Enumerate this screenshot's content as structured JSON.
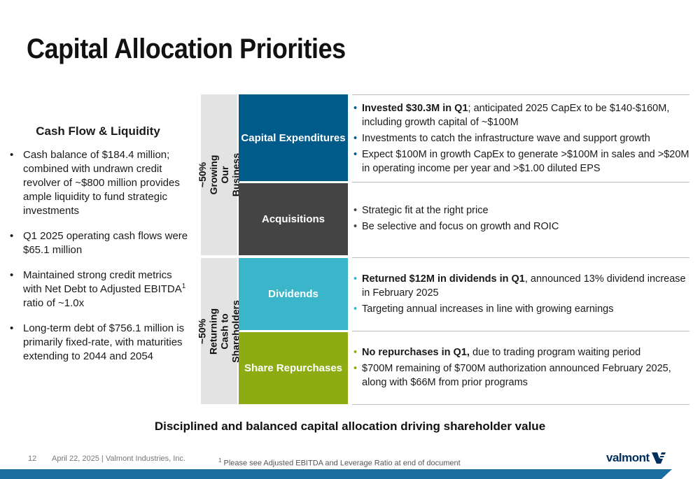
{
  "title": "Capital Allocation Priorities",
  "left": {
    "heading": "Cash Flow & Liquidity",
    "bullets": [
      "Cash balance of $184.4 million; combined with undrawn credit revolver of ~$800 million provides ample liquidity to fund strategic investments",
      "Q1 2025 operating cash flows were $65.1 million",
      "Maintained strong credit metrics with Net Debt to Adjusted EBITDA",
      "ratio of ~1.0x",
      "Long-term debt of $756.1 million is primarily fixed-rate, with maturities extending to 2044 and 2054"
    ],
    "footnote_marker": "1"
  },
  "groups": {
    "growing": "~50% Growing Our Business",
    "returning": "~50% Returning Cash to Shareholders"
  },
  "categories": {
    "capex": "Capital Expenditures",
    "acquisitions": "Acquisitions",
    "dividends": "Dividends",
    "repurchases": "Share Repurchases"
  },
  "capex": {
    "b1_bold": "Invested $30.3M in Q1",
    "b1_rest": "; anticipated 2025 CapEx to be $140-$160M, including growth capital of ~$100M",
    "b2": "Investments to catch the infrastructure wave and support growth",
    "b3": "Expect $100M in growth CapEx to generate >$100M in sales and >$20M in operating income per year and >$1.00 diluted EPS"
  },
  "acquisitions": {
    "b1": "Strategic fit at the right price",
    "b2": "Be selective and focus on growth and ROIC"
  },
  "dividends": {
    "b1_bold": "Returned $12M in dividends in Q1",
    "b1_rest": ", announced 13% dividend increase in February 2025",
    "b2": "Targeting annual increases in line with growing earnings"
  },
  "repurchases": {
    "b1_bold": "No repurchases in Q1,",
    "b1_rest": " due to trading program waiting period",
    "b2": "$700M remaining of $700M authorization announced February 2025, along with $66M from prior programs"
  },
  "tagline": "Disciplined and balanced capital allocation driving shareholder value",
  "footer": {
    "page": "12",
    "text": "April 22, 2025  | Valmont Industries, Inc.",
    "footnote_marker": "1",
    "footnote": " Please see Adjusted EBITDA and Leverage Ratio at end of document",
    "logo": "valmont"
  },
  "colors": {
    "capex": "#005a8a",
    "acquisitions": "#444444",
    "dividends": "#3bb5c9",
    "repurchases": "#8dac13",
    "bar": "#1a6ea0"
  }
}
